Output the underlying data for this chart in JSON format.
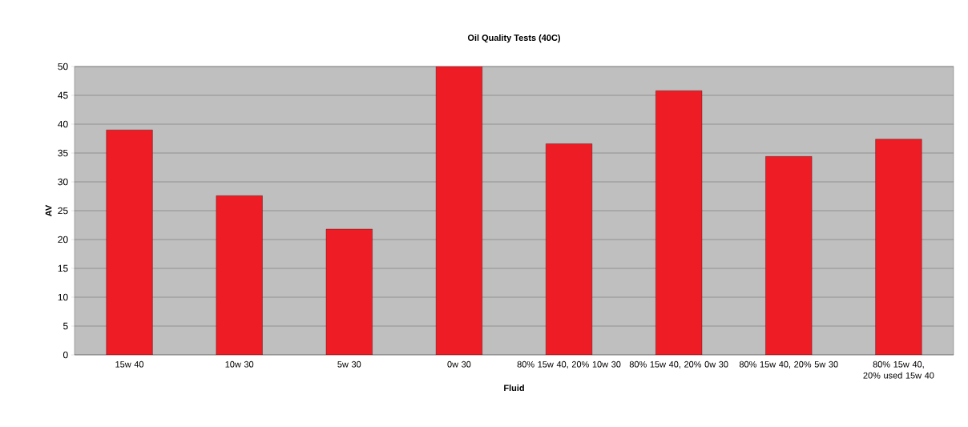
{
  "chart_data": {
    "type": "bar",
    "title": "Oil Quality Tests (40C)",
    "xlabel": "Fluid",
    "ylabel": "AV",
    "categories": [
      "15w 40",
      "10w 30",
      "5w 30",
      "0w 30",
      "80% 15w 40, 20% 10w 30",
      "80% 15w 40, 20% 0w 30",
      "80% 15w 40, 20% 5w 30",
      "80% 15w 40, 20% used 15w 40"
    ],
    "values": [
      39.0,
      27.6,
      21.8,
      50,
      36.6,
      45.8,
      34.4,
      37.4
    ],
    "color": "#ee1c24",
    "ylim": [
      0,
      50
    ],
    "yticks": [
      0,
      5,
      10,
      15,
      20,
      25,
      30,
      35,
      40,
      45,
      50
    ],
    "grid": "y"
  }
}
